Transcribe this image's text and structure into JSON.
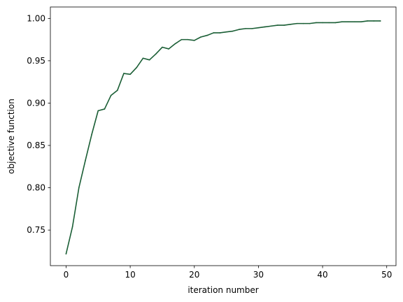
{
  "chart_data": {
    "type": "line",
    "xlabel": "iteration number",
    "ylabel": "objective function",
    "xlim": [
      -2.45,
      51.45
    ],
    "ylim": [
      0.708,
      1.0135
    ],
    "x_ticks": [
      0,
      10,
      20,
      30,
      40,
      50
    ],
    "y_ticks": [
      0.75,
      0.8,
      0.85,
      0.9,
      0.95,
      1.0
    ],
    "x_tick_labels": [
      "0",
      "10",
      "20",
      "30",
      "40",
      "50"
    ],
    "y_tick_labels": [
      "0.75",
      "0.80",
      "0.85",
      "0.90",
      "0.95",
      "1.00"
    ],
    "grid": false,
    "legend": false,
    "line_color": "#1a5e35",
    "series": [
      {
        "x": [
          0,
          1,
          2,
          3,
          4,
          5,
          6,
          7,
          8,
          9,
          10,
          11,
          12,
          13,
          14,
          15,
          16,
          17,
          18,
          19,
          20,
          21,
          22,
          23,
          24,
          25,
          26,
          27,
          28,
          29,
          30,
          31,
          32,
          33,
          34,
          35,
          36,
          37,
          38,
          39,
          40,
          41,
          42,
          43,
          44,
          45,
          46,
          47,
          48,
          49
        ],
        "values": [
          0.722,
          0.754,
          0.8,
          0.832,
          0.863,
          0.891,
          0.893,
          0.909,
          0.915,
          0.935,
          0.934,
          0.942,
          0.953,
          0.951,
          0.958,
          0.966,
          0.964,
          0.97,
          0.975,
          0.975,
          0.974,
          0.978,
          0.98,
          0.983,
          0.983,
          0.984,
          0.985,
          0.987,
          0.988,
          0.988,
          0.989,
          0.99,
          0.991,
          0.992,
          0.992,
          0.993,
          0.994,
          0.994,
          0.994,
          0.995,
          0.995,
          0.995,
          0.995,
          0.996,
          0.996,
          0.996,
          0.996,
          0.997,
          0.997,
          0.997
        ]
      }
    ]
  }
}
